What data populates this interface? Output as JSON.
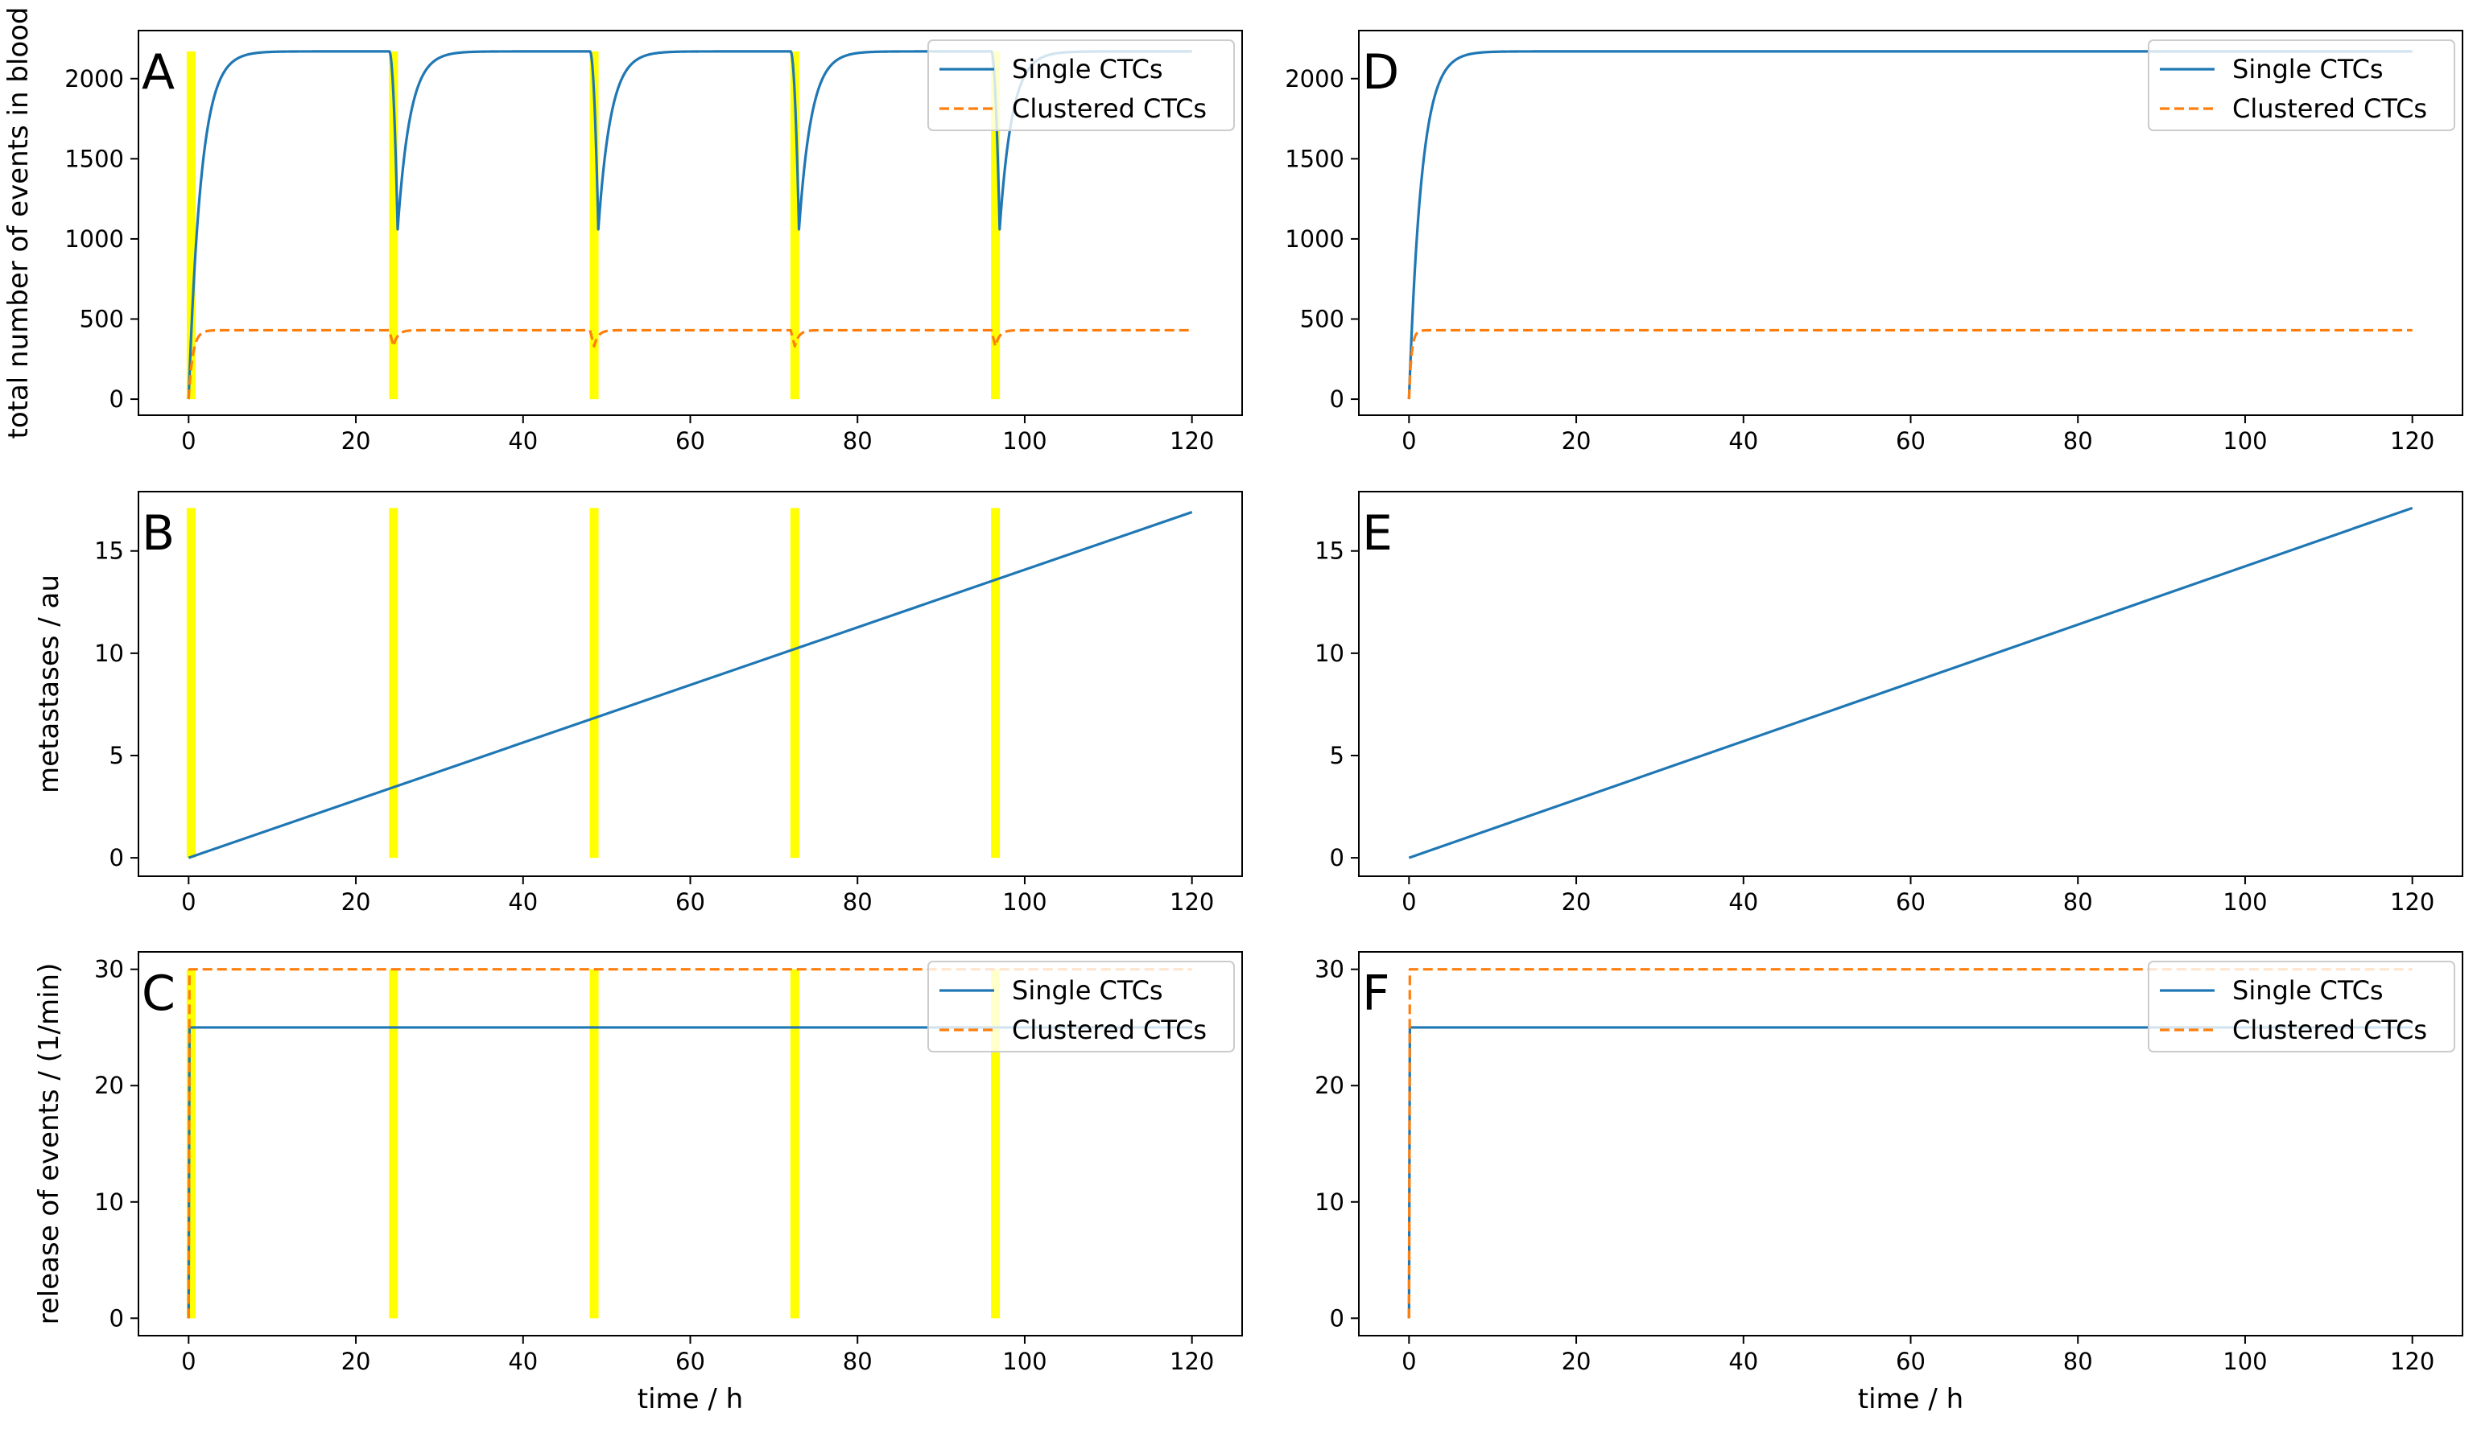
{
  "figure": {
    "xlabel": "time / h",
    "x_ticks": [
      0,
      20,
      40,
      60,
      80,
      100,
      120
    ],
    "row_ylabels": [
      "total number of events in blood",
      "metastases / au",
      "release of events / (1/min)"
    ]
  },
  "colors": {
    "single": "#1f77b4",
    "clustered": "#ff7f0e",
    "highlight": "#ffff00"
  },
  "legend": {
    "single_label": "Single CTCs",
    "clustered_label": "Clustered CTCs"
  },
  "chart_data": [
    {
      "id": "A",
      "type": "line",
      "label": "A",
      "xlim": [
        -6,
        126
      ],
      "ylim": [
        -100,
        2300
      ],
      "yticks": [
        0,
        500,
        1000,
        1500,
        2000
      ],
      "ylabel": "total number of events in blood",
      "highlights": [
        0.3,
        24.5,
        48.5,
        72.5,
        96.5
      ],
      "highlight_range": [
        0,
        2170
      ],
      "legend": true,
      "series": [
        {
          "key": "single",
          "name": "Single CTCs",
          "model": "periodic_saturation",
          "ymax": 2170,
          "dip_min": 1060,
          "tau": 1.5,
          "cycles": [
            0,
            24,
            48,
            72,
            96
          ]
        },
        {
          "key": "clustered",
          "name": "Clustered CTCs",
          "model": "periodic_saturation_small",
          "ymax": 430,
          "dip_min": 330,
          "tau": 0.5,
          "cycles": [
            0,
            24,
            48,
            72,
            96
          ]
        }
      ]
    },
    {
      "id": "B",
      "type": "line",
      "label": "B",
      "xlim": [
        -6,
        126
      ],
      "ylim": [
        -0.9,
        17.9
      ],
      "yticks": [
        0,
        5,
        10,
        15
      ],
      "ylabel": "metastases / au",
      "highlights": [
        0.3,
        24.5,
        48.5,
        72.5,
        96.5
      ],
      "highlight_range": [
        0,
        17.1
      ],
      "legend": false,
      "series": [
        {
          "key": "single",
          "name": "Single CTCs",
          "model": "linear",
          "x": [
            0,
            120
          ],
          "y": [
            0,
            16.9
          ]
        }
      ]
    },
    {
      "id": "C",
      "type": "line",
      "label": "C",
      "xlim": [
        -6,
        126
      ],
      "ylim": [
        -1.5,
        31.5
      ],
      "yticks": [
        0,
        10,
        20,
        30
      ],
      "ylabel": "release of events / (1/min)",
      "highlights": [
        0.3,
        24.5,
        48.5,
        72.5,
        96.5
      ],
      "highlight_range": [
        0,
        30
      ],
      "legend": true,
      "series": [
        {
          "key": "single",
          "name": "Single CTCs",
          "model": "step",
          "step_x": 0.1,
          "level": 25
        },
        {
          "key": "clustered",
          "name": "Clustered CTCs",
          "model": "step",
          "step_x": 0.1,
          "level": 30
        }
      ]
    },
    {
      "id": "D",
      "type": "line",
      "label": "D",
      "xlim": [
        -6,
        126
      ],
      "ylim": [
        -100,
        2300
      ],
      "yticks": [
        0,
        500,
        1000,
        1500,
        2000
      ],
      "highlights": [],
      "legend": true,
      "series": [
        {
          "key": "single",
          "name": "Single CTCs",
          "model": "saturation",
          "ymax": 2170,
          "tau": 1.5
        },
        {
          "key": "clustered",
          "name": "Clustered CTCs",
          "model": "saturation",
          "ymax": 430,
          "tau": 0.3
        }
      ]
    },
    {
      "id": "E",
      "type": "line",
      "label": "E",
      "xlim": [
        -6,
        126
      ],
      "ylim": [
        -0.9,
        17.9
      ],
      "yticks": [
        0,
        5,
        10,
        15
      ],
      "highlights": [],
      "legend": false,
      "series": [
        {
          "key": "single",
          "name": "Single CTCs",
          "model": "linear",
          "x": [
            0,
            120
          ],
          "y": [
            0,
            17.1
          ]
        }
      ]
    },
    {
      "id": "F",
      "type": "line",
      "label": "F",
      "xlim": [
        -6,
        126
      ],
      "ylim": [
        -1.5,
        31.5
      ],
      "yticks": [
        0,
        10,
        20,
        30
      ],
      "highlights": [],
      "legend": true,
      "series": [
        {
          "key": "single",
          "name": "Single CTCs",
          "model": "step",
          "step_x": 0.1,
          "level": 25
        },
        {
          "key": "clustered",
          "name": "Clustered CTCs",
          "model": "step",
          "step_x": 0.1,
          "level": 30
        }
      ]
    }
  ]
}
